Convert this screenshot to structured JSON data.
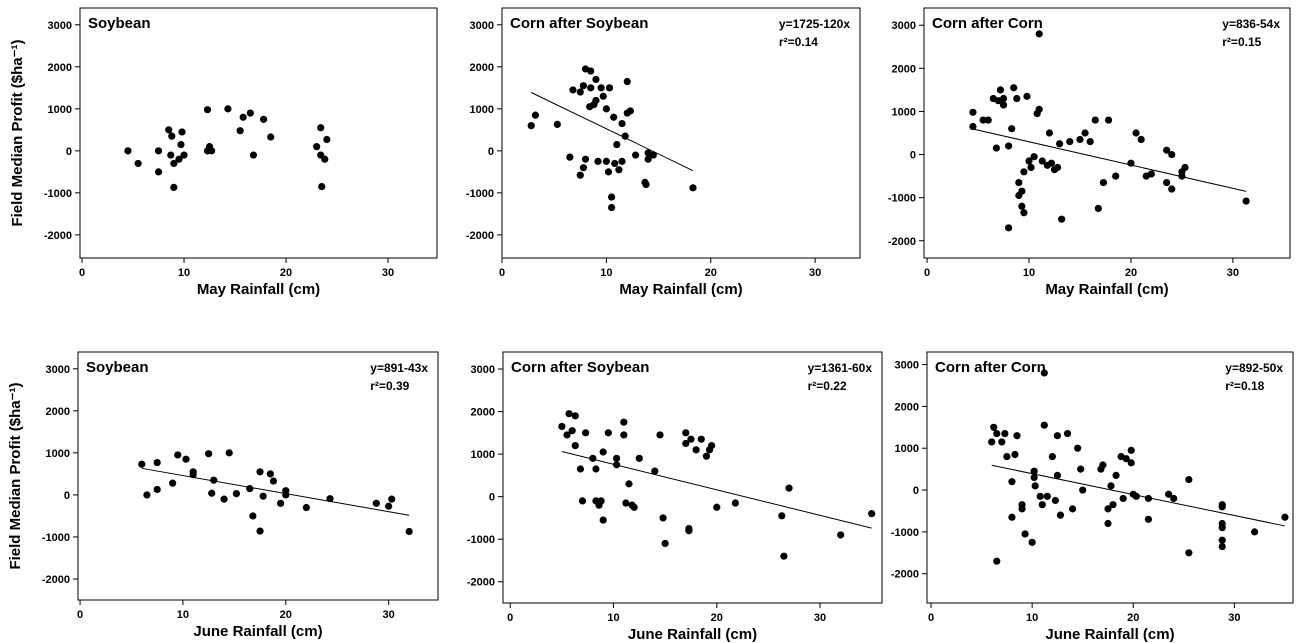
{
  "chart_data": [
    {
      "type": "scatter",
      "title": "Soybean",
      "xlabel": "May Rainfall (cm)",
      "ylabel": "Field Median Profit ($ha⁻¹)",
      "xlim": [
        -0.2,
        34.8
      ],
      "ylim": [
        -2550,
        3400
      ],
      "xticks": [
        0,
        10,
        20,
        30
      ],
      "yticks": [
        -2000,
        -1000,
        0,
        1000,
        2000,
        3000
      ],
      "color": "#000000",
      "x": [
        4.5,
        5.5,
        7.5,
        7.5,
        8.5,
        8.7,
        8.8,
        9,
        9,
        9.5,
        9.7,
        9.8,
        10,
        12.3,
        12.3,
        12.5,
        12.7,
        14.3,
        15.5,
        15.8,
        16.5,
        16.8,
        17.8,
        18.5,
        23,
        23.4,
        23.4,
        23.5,
        23.8,
        24
      ],
      "y": [
        0,
        -300,
        -500,
        0,
        500,
        -100,
        350,
        -300,
        -870,
        -200,
        150,
        450,
        -100,
        980,
        0,
        100,
        0,
        1000,
        480,
        800,
        900,
        -100,
        750,
        330,
        100,
        -100,
        550,
        -850,
        -200,
        270
      ]
    },
    {
      "type": "scatter",
      "title": "Corn after Soybean",
      "equation": "y=1725-120x",
      "r2_label": "r²=0.14",
      "fit": {
        "intercept": 1725,
        "slope": -120
      },
      "xlabel": "May Rainfall (cm)",
      "xlim": [
        0,
        34.3
      ],
      "ylim": [
        -2550,
        3400
      ],
      "xticks": [
        0,
        10,
        20,
        30
      ],
      "yticks": [
        -2000,
        -1000,
        0,
        1000,
        2000,
        3000
      ],
      "color": "#000000",
      "x": [
        2.8,
        3.2,
        5.3,
        6.5,
        6.8,
        7.5,
        7.5,
        7.8,
        7.8,
        8,
        8,
        8.4,
        8.5,
        8.5,
        8.8,
        9,
        9,
        9.2,
        9.5,
        9.7,
        10,
        10,
        10.2,
        10.3,
        10.5,
        10.5,
        10.7,
        10.8,
        11,
        11.2,
        11.5,
        11.5,
        11.8,
        12,
        12,
        12.3,
        12.8,
        13.7,
        13.8,
        14,
        14,
        14.5,
        18.3
      ],
      "y": [
        600,
        850,
        630,
        -150,
        1450,
        -580,
        1400,
        1550,
        -400,
        1950,
        -200,
        1050,
        1900,
        1500,
        1100,
        1700,
        1200,
        -250,
        1500,
        1300,
        -250,
        1000,
        -500,
        1500,
        -1350,
        -1100,
        800,
        -300,
        150,
        -450,
        -250,
        650,
        350,
        1650,
        900,
        950,
        -100,
        -750,
        -800,
        -200,
        -50,
        -100,
        -880
      ]
    },
    {
      "type": "scatter",
      "title": "Corn after Corn",
      "equation": "y=836-54x",
      "r2_label": "r²=0.15",
      "fit": {
        "intercept": 836,
        "slope": -54
      },
      "xlabel": "May Rainfall (cm)",
      "xlim": [
        -0.3,
        35.6
      ],
      "ylim": [
        -2400,
        3400
      ],
      "xticks": [
        0,
        10,
        20,
        30
      ],
      "yticks": [
        -2000,
        -1000,
        0,
        1000,
        2000,
        3000
      ],
      "color": "#000000",
      "x": [
        4.5,
        4.5,
        5.5,
        6,
        6.5,
        6.8,
        7,
        7.2,
        7.5,
        7.5,
        8,
        8,
        8.3,
        8.5,
        8.8,
        9,
        9,
        9.3,
        9.3,
        9.5,
        9.5,
        9.8,
        10,
        10.2,
        10.5,
        10.8,
        11,
        11,
        11.3,
        11.8,
        12,
        12.2,
        12.5,
        12.8,
        13,
        13.2,
        14,
        15,
        15.5,
        16,
        16.5,
        16.8,
        17.3,
        17.8,
        18.5,
        20,
        20.5,
        21,
        21.5,
        22,
        23.5,
        23.5,
        24,
        24,
        25,
        25,
        25.3,
        31.3
      ],
      "y": [
        980,
        650,
        800,
        800,
        1300,
        150,
        1250,
        1500,
        1150,
        1300,
        -1700,
        200,
        600,
        1550,
        1300,
        -650,
        -950,
        -850,
        -1200,
        -1350,
        -400,
        1350,
        -150,
        -300,
        -50,
        950,
        1050,
        2800,
        -150,
        -250,
        500,
        -200,
        -350,
        -300,
        250,
        -1500,
        300,
        350,
        500,
        300,
        800,
        -1250,
        -650,
        800,
        -500,
        -200,
        500,
        350,
        -500,
        -450,
        -650,
        100,
        0,
        -800,
        -500,
        -400,
        -300,
        -1080
      ]
    },
    {
      "type": "scatter",
      "title": "Soybean",
      "equation": "y=891-43x",
      "r2_label": "r²=0.39",
      "fit": {
        "intercept": 891,
        "slope": -43
      },
      "xlabel": "June Rainfall (cm)",
      "ylabel": "Field Median Profit ($ha⁻¹)",
      "xlim": [
        -0.2,
        34.8
      ],
      "ylim": [
        -2500,
        3400
      ],
      "xticks": [
        0,
        10,
        20,
        30
      ],
      "yticks": [
        -2000,
        -1000,
        0,
        1000,
        2000,
        3000
      ],
      "color": "#000000",
      "x": [
        6,
        6.5,
        7.5,
        7.5,
        9,
        9.5,
        10.3,
        11,
        11,
        12.5,
        12.8,
        13,
        14,
        14.5,
        15.2,
        16.5,
        16.8,
        17.5,
        17.5,
        17.8,
        18.5,
        18.8,
        19.5,
        20,
        20,
        22,
        24.3,
        28.8,
        30,
        30.3,
        32
      ],
      "y": [
        730,
        0,
        770,
        130,
        280,
        950,
        850,
        550,
        480,
        980,
        40,
        350,
        -100,
        1000,
        30,
        150,
        -500,
        -860,
        550,
        -30,
        500,
        330,
        -200,
        100,
        0,
        -300,
        -90,
        -200,
        -270,
        -100,
        -870
      ]
    },
    {
      "type": "scatter",
      "title": "Corn after Soybean",
      "equation": "y=1361-60x",
      "r2_label": "r²=0.22",
      "fit": {
        "intercept": 1361,
        "slope": -60
      },
      "xlabel": "June Rainfall (cm)",
      "xlim": [
        -0.7,
        36
      ],
      "ylim": [
        -2500,
        3400
      ],
      "xticks": [
        0,
        10,
        20,
        30
      ],
      "yticks": [
        -2000,
        -1000,
        0,
        1000,
        2000,
        3000
      ],
      "color": "#000000",
      "x": [
        5,
        5.5,
        5.7,
        6,
        6.3,
        6.3,
        6.8,
        7,
        7.3,
        8,
        8.3,
        8.3,
        8.6,
        8.8,
        9,
        9,
        9.5,
        10.3,
        10.3,
        11,
        11,
        11.2,
        11.5,
        11.8,
        12,
        12.5,
        14,
        14.5,
        14.8,
        15,
        17,
        17,
        17.3,
        17.3,
        17.5,
        18,
        18.5,
        19,
        19.3,
        19.5,
        20,
        21.8,
        26.3,
        26.5,
        27,
        32,
        35
      ],
      "y": [
        1650,
        1450,
        1950,
        1550,
        1900,
        1200,
        650,
        -100,
        1500,
        900,
        -100,
        650,
        -200,
        -100,
        -550,
        1050,
        1500,
        900,
        750,
        1750,
        1450,
        -150,
        300,
        -200,
        -250,
        900,
        600,
        1450,
        -500,
        -1100,
        1500,
        1250,
        -750,
        -800,
        1350,
        1100,
        1350,
        950,
        1100,
        1200,
        -250,
        -150,
        -450,
        -1400,
        200,
        -900,
        -400
      ]
    },
    {
      "type": "scatter",
      "title": "Corn after Corn",
      "equation": "y=892-50x",
      "r2_label": "r²=0.18",
      "fit": {
        "intercept": 892,
        "slope": -50
      },
      "xlabel": "June Rainfall (cm)",
      "xlim": [
        -0.4,
        35.8
      ],
      "ylim": [
        -2700,
        3300
      ],
      "xticks": [
        0,
        10,
        20,
        30
      ],
      "yticks": [
        -2000,
        -1000,
        0,
        1000,
        2000,
        3000
      ],
      "color": "#000000",
      "x": [
        6,
        6.2,
        6.5,
        6.5,
        7,
        7.3,
        7.5,
        8,
        8,
        8.3,
        8.5,
        9,
        9,
        9.3,
        10,
        10.2,
        10.2,
        10.3,
        10.8,
        11,
        11.2,
        11.2,
        11.5,
        12,
        12.3,
        12.5,
        12.5,
        12.8,
        13.5,
        14,
        14.5,
        14.8,
        15,
        16.8,
        17,
        17.5,
        17.5,
        17.8,
        18,
        18.3,
        18.8,
        19,
        19.3,
        19.8,
        19.8,
        20,
        20.3,
        21.5,
        21.5,
        23.5,
        24,
        25.5,
        25.5,
        28.8,
        28.8,
        28.8,
        28.8,
        28.8,
        28.8,
        32,
        35
      ],
      "y": [
        1150,
        1500,
        1350,
        -1700,
        1150,
        1350,
        800,
        -650,
        200,
        850,
        1300,
        -450,
        -350,
        -1050,
        -1250,
        300,
        450,
        100,
        -150,
        -350,
        1550,
        2800,
        -150,
        800,
        -250,
        1300,
        350,
        -600,
        1350,
        -450,
        1000,
        500,
        0,
        500,
        600,
        -450,
        -800,
        100,
        -350,
        350,
        800,
        -200,
        750,
        950,
        650,
        -100,
        -150,
        -200,
        -700,
        -100,
        -200,
        -1500,
        250,
        -350,
        -400,
        -800,
        -900,
        -1200,
        -1350,
        -1000,
        -650
      ]
    }
  ]
}
